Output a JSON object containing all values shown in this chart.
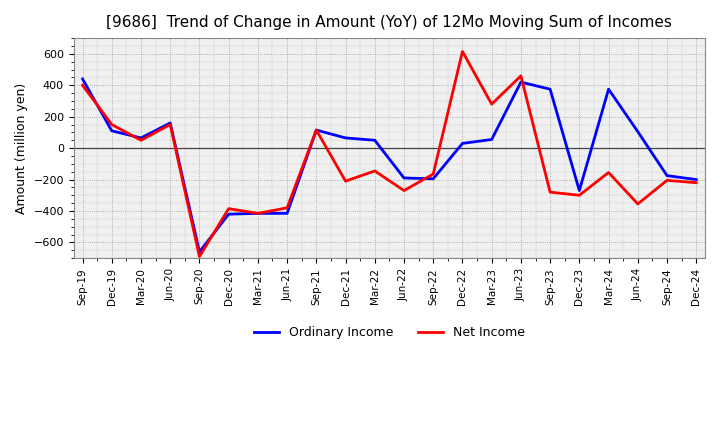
{
  "title": "[9686]  Trend of Change in Amount (YoY) of 12Mo Moving Sum of Incomes",
  "ylabel": "Amount (million yen)",
  "xlabel": "",
  "xlabels": [
    "Sep-19",
    "Dec-19",
    "Mar-20",
    "Jun-20",
    "Sep-20",
    "Dec-20",
    "Mar-21",
    "Jun-21",
    "Sep-21",
    "Dec-21",
    "Mar-22",
    "Jun-22",
    "Sep-22",
    "Dec-22",
    "Mar-23",
    "Jun-23",
    "Sep-23",
    "Dec-23",
    "Mar-24",
    "Jun-24",
    "Sep-24",
    "Dec-24"
  ],
  "ordinary_income": [
    440,
    110,
    65,
    160,
    -660,
    -420,
    -415,
    -415,
    115,
    65,
    50,
    -190,
    -195,
    30,
    55,
    420,
    375,
    -270,
    375,
    105,
    -175,
    -200
  ],
  "net_income": [
    400,
    150,
    50,
    150,
    -690,
    -385,
    -415,
    -380,
    115,
    -210,
    -145,
    -270,
    -165,
    615,
    280,
    460,
    -280,
    -300,
    -155,
    -355,
    -205,
    -220
  ],
  "ordinary_color": "#0000ff",
  "net_color": "#ff0000",
  "ylim": [
    -700,
    700
  ],
  "yticks": [
    -600,
    -400,
    -200,
    0,
    200,
    400,
    600
  ],
  "bg_color": "#ffffff",
  "plot_bg_color": "#f0f0f0",
  "grid_color": "#999999",
  "title_fontsize": 11,
  "legend_labels": [
    "Ordinary Income",
    "Net Income"
  ],
  "line_width": 2.0
}
